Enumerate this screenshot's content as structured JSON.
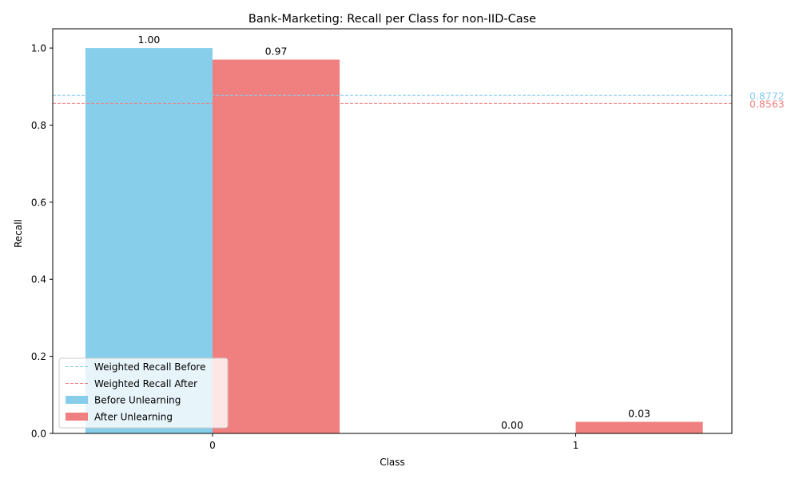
{
  "chart_data": {
    "type": "bar",
    "title": "Bank-Marketing: Recall per Class for non-IID-Case",
    "xlabel": "Class",
    "ylabel": "Recall",
    "categories": [
      "0",
      "1"
    ],
    "ylim": [
      0,
      1.05
    ],
    "yticks": [
      "0.0",
      "0.2",
      "0.4",
      "0.6",
      "0.8",
      "1.0"
    ],
    "series": [
      {
        "name": "Before Unlearning",
        "color": "#87ceeb",
        "values": [
          1.0,
          0.0
        ],
        "labels": [
          "1.00",
          "0.00"
        ]
      },
      {
        "name": "After Unlearning",
        "color": "#f08080",
        "values": [
          0.97,
          0.03
        ],
        "labels": [
          "0.97",
          "0.03"
        ]
      }
    ],
    "reference_lines": [
      {
        "name": "Weighted Recall Before",
        "value": 0.8772,
        "label": "0.8772",
        "color": "#87ceeb",
        "style": "dashed"
      },
      {
        "name": "Weighted Recall After",
        "value": 0.8563,
        "label": "0.8563",
        "color": "#f08080",
        "style": "dashed"
      }
    ],
    "legend_position": "lower-left",
    "grid": false
  }
}
